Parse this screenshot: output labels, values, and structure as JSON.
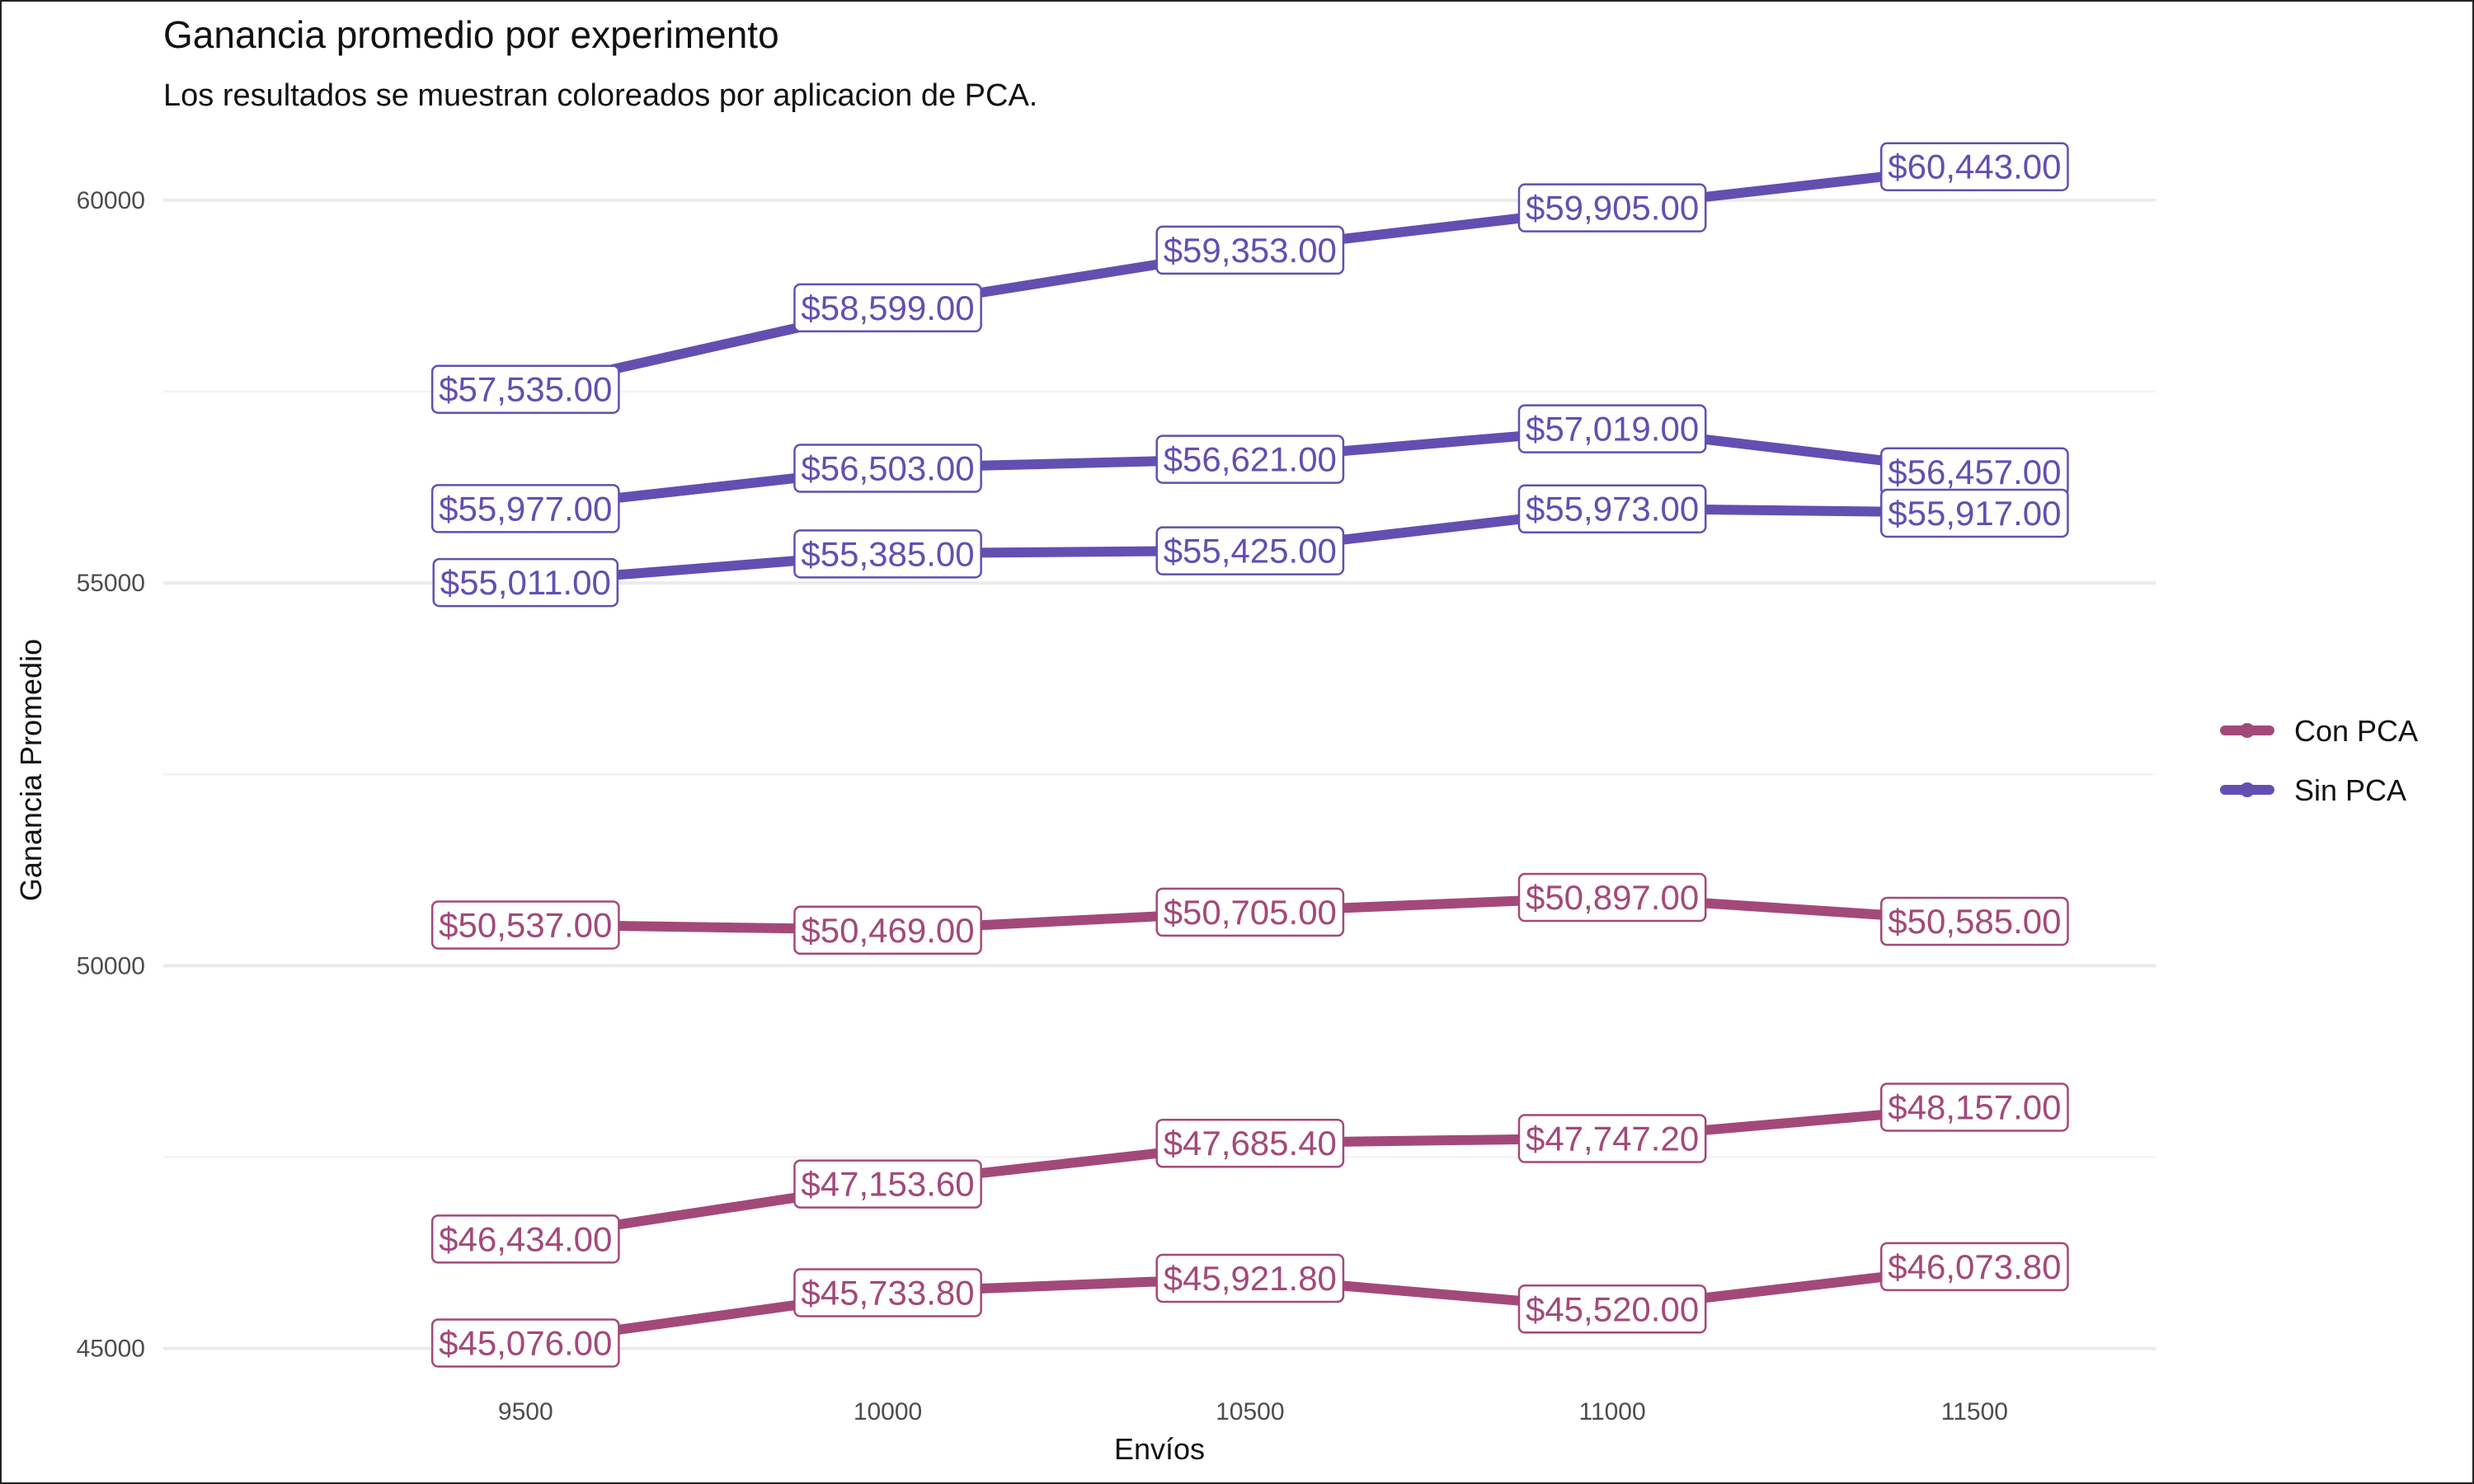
{
  "chart_data": {
    "type": "line",
    "title": "Ganancia promedio por experimento",
    "subtitle": "Los resultados se muestran coloreados por aplicacion de PCA.",
    "xlabel": "Envíos",
    "ylabel": "Ganancia Promedio",
    "x": [
      9500,
      10000,
      10500,
      11000,
      11500
    ],
    "x_ticks": [
      "9500",
      "10000",
      "10500",
      "11000",
      "11500"
    ],
    "y_ticks": [
      "45000",
      "50000",
      "55000",
      "60000"
    ],
    "xlim": [
      9000,
      11750
    ],
    "ylim": [
      44500,
      61000
    ],
    "grid": true,
    "legend_position": "right",
    "legend": [
      "Con PCA",
      "Sin PCA"
    ],
    "colors": {
      "Con PCA": "#a3497a",
      "Sin PCA": "#634fb1"
    },
    "series": [
      {
        "group": "Sin PCA",
        "values": [
          57535,
          58599,
          59353,
          59905,
          60443
        ],
        "labels": [
          "$57,535.00",
          "$58,599.00",
          "$59,353.00",
          "$59,905.00",
          "$60,443.00"
        ]
      },
      {
        "group": "Sin PCA",
        "values": [
          55977,
          56503,
          56621,
          57019,
          56457
        ],
        "labels": [
          "$55,977.00",
          "$56,503.00",
          "$56,621.00",
          "$57,019.00",
          "$56,457.00"
        ]
      },
      {
        "group": "Sin PCA",
        "values": [
          55011,
          55385,
          55425,
          55973,
          55917
        ],
        "labels": [
          "$55,011.00",
          "$55,385.00",
          "$55,425.00",
          "$55,973.00",
          "$55,917.00"
        ]
      },
      {
        "group": "Con PCA",
        "values": [
          50537,
          50469,
          50705,
          50897,
          50585
        ],
        "labels": [
          "$50,537.00",
          "$50,469.00",
          "$50,705.00",
          "$50,897.00",
          "$50,585.00"
        ]
      },
      {
        "group": "Con PCA",
        "values": [
          46434,
          47153.6,
          47685.4,
          47747.2,
          48157
        ],
        "labels": [
          "$46,434.00",
          "$47,153.60",
          "$47,685.40",
          "$47,747.20",
          "$48,157.00"
        ]
      },
      {
        "group": "Con PCA",
        "values": [
          45076,
          45733.8,
          45921.8,
          45520,
          46073.8
        ],
        "labels": [
          "$45,076.00",
          "$45,733.80",
          "$45,921.80",
          "$45,520.00",
          "$46,073.80"
        ]
      }
    ]
  }
}
